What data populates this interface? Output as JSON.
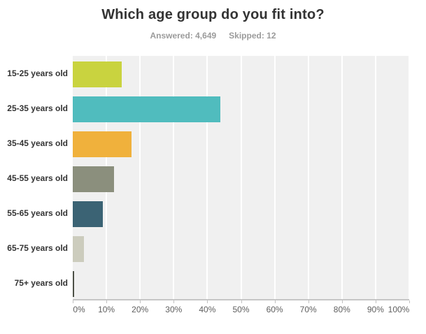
{
  "title": "Which age group do you fit into?",
  "stats": {
    "answered_label": "Answered: 4,649",
    "skipped_label": "Skipped: 12"
  },
  "chart_data": {
    "type": "bar",
    "orientation": "horizontal",
    "title": "Which age group do you fit into?",
    "subtitle": "Answered: 4,649  Skipped: 12",
    "categories": [
      "15-25 years old",
      "25-35 years old",
      "35-45 years old",
      "45-55 years old",
      "55-65 years old",
      "65-75 years old",
      "75+ years old"
    ],
    "values": [
      14.6,
      43.9,
      17.4,
      12.3,
      8.9,
      3.4,
      0.5
    ],
    "bar_colors": [
      "#c9d33f",
      "#50bcbe",
      "#f0b13c",
      "#8b8f7d",
      "#3b6374",
      "#ccccbd",
      "#4c5046"
    ],
    "xlabel": "",
    "ylabel": "",
    "xlim": [
      0,
      100
    ],
    "x_tick_step": 10,
    "x_tick_labels": [
      "0%",
      "10%",
      "20%",
      "30%",
      "40%",
      "50%",
      "60%",
      "70%",
      "80%",
      "90%",
      "100%"
    ],
    "grid": true,
    "legend": "none",
    "plot_bg_color": "#f0f0f0",
    "gridline_color": "#ffffff",
    "axis_line_color": "#c6c6c6",
    "label_color": "#333333",
    "tick_label_color": "#5f5f5f"
  }
}
